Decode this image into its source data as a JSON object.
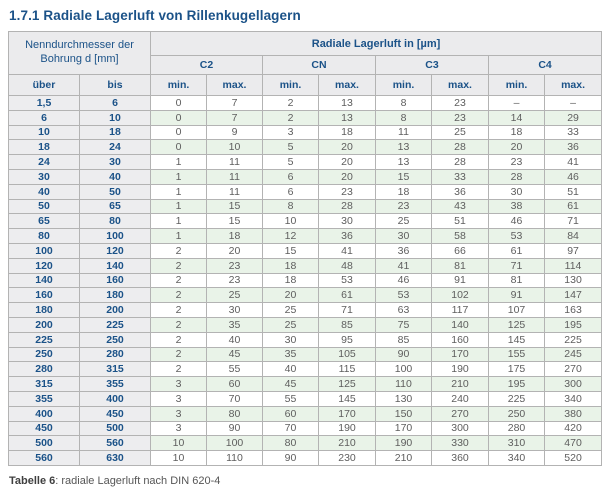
{
  "page": {
    "title": "1.7.1 Radiale Lagerluft von Rillenkugellagern"
  },
  "caption": {
    "label": "Tabelle 6",
    "rest": ": radiale Lagerluft nach DIN 620-4"
  },
  "colors": {
    "heading_blue": "#1b5288",
    "header_bg": "#ebebed",
    "zebra_green": "#e9f3e8",
    "data_text": "#5e5e5e",
    "border_inner": "#b3b3b3",
    "border_outer": "#8f8f8f"
  },
  "table": {
    "bore_header": "Nenndurchmesser der Bohrung d [mm]",
    "clearance_header": "Radiale Lagerluft in [µm]",
    "groups": [
      "C2",
      "CN",
      "C3",
      "C4"
    ],
    "sub_headers": [
      "über",
      "bis",
      "min.",
      "max.",
      "min.",
      "max.",
      "min.",
      "max.",
      "min.",
      "max."
    ],
    "rows": [
      [
        "1,5",
        "6",
        "0",
        "7",
        "2",
        "13",
        "8",
        "23",
        "–",
        "–"
      ],
      [
        "6",
        "10",
        "0",
        "7",
        "2",
        "13",
        "8",
        "23",
        "14",
        "29"
      ],
      [
        "10",
        "18",
        "0",
        "9",
        "3",
        "18",
        "11",
        "25",
        "18",
        "33"
      ],
      [
        "18",
        "24",
        "0",
        "10",
        "5",
        "20",
        "13",
        "28",
        "20",
        "36"
      ],
      [
        "24",
        "30",
        "1",
        "11",
        "5",
        "20",
        "13",
        "28",
        "23",
        "41"
      ],
      [
        "30",
        "40",
        "1",
        "11",
        "6",
        "20",
        "15",
        "33",
        "28",
        "46"
      ],
      [
        "40",
        "50",
        "1",
        "11",
        "6",
        "23",
        "18",
        "36",
        "30",
        "51"
      ],
      [
        "50",
        "65",
        "1",
        "15",
        "8",
        "28",
        "23",
        "43",
        "38",
        "61"
      ],
      [
        "65",
        "80",
        "1",
        "15",
        "10",
        "30",
        "25",
        "51",
        "46",
        "71"
      ],
      [
        "80",
        "100",
        "1",
        "18",
        "12",
        "36",
        "30",
        "58",
        "53",
        "84"
      ],
      [
        "100",
        "120",
        "2",
        "20",
        "15",
        "41",
        "36",
        "66",
        "61",
        "97"
      ],
      [
        "120",
        "140",
        "2",
        "23",
        "18",
        "48",
        "41",
        "81",
        "71",
        "114"
      ],
      [
        "140",
        "160",
        "2",
        "23",
        "18",
        "53",
        "46",
        "91",
        "81",
        "130"
      ],
      [
        "160",
        "180",
        "2",
        "25",
        "20",
        "61",
        "53",
        "102",
        "91",
        "147"
      ],
      [
        "180",
        "200",
        "2",
        "30",
        "25",
        "71",
        "63",
        "117",
        "107",
        "163"
      ],
      [
        "200",
        "225",
        "2",
        "35",
        "25",
        "85",
        "75",
        "140",
        "125",
        "195"
      ],
      [
        "225",
        "250",
        "2",
        "40",
        "30",
        "95",
        "85",
        "160",
        "145",
        "225"
      ],
      [
        "250",
        "280",
        "2",
        "45",
        "35",
        "105",
        "90",
        "170",
        "155",
        "245"
      ],
      [
        "280",
        "315",
        "2",
        "55",
        "40",
        "115",
        "100",
        "190",
        "175",
        "270"
      ],
      [
        "315",
        "355",
        "3",
        "60",
        "45",
        "125",
        "110",
        "210",
        "195",
        "300"
      ],
      [
        "355",
        "400",
        "3",
        "70",
        "55",
        "145",
        "130",
        "240",
        "225",
        "340"
      ],
      [
        "400",
        "450",
        "3",
        "80",
        "60",
        "170",
        "150",
        "270",
        "250",
        "380"
      ],
      [
        "450",
        "500",
        "3",
        "90",
        "70",
        "190",
        "170",
        "300",
        "280",
        "420"
      ],
      [
        "500",
        "560",
        "10",
        "100",
        "80",
        "210",
        "190",
        "330",
        "310",
        "470"
      ],
      [
        "560",
        "630",
        "10",
        "110",
        "90",
        "230",
        "210",
        "360",
        "340",
        "520"
      ]
    ]
  }
}
